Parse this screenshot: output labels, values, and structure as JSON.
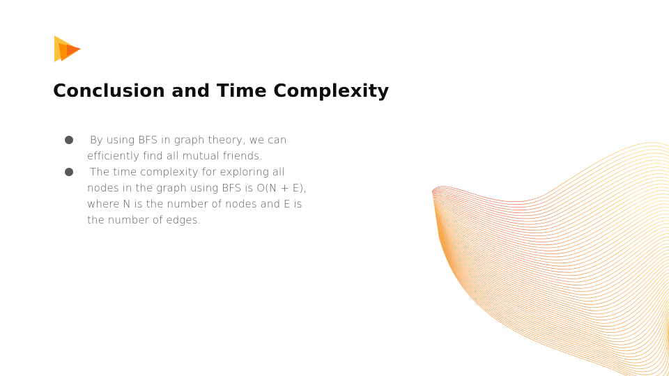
{
  "slide": {
    "title": "Conclusion and Time Complexity",
    "bullets": [
      {
        "text": "By using BFS in graph theory, we can efficiently find all mutual friends."
      },
      {
        "text": "The time complexity for exploring all nodes in the graph using BFS is O(N + E), where N is the number of nodes and E is the number of edges."
      }
    ]
  },
  "logo": {
    "icon": "play-triangle-logo-icon",
    "colors": [
      "#F9C23C",
      "#FF8A00",
      "#F36B16"
    ]
  },
  "decoration": {
    "icon": "line-wave-decoration",
    "gradient": [
      "#E8433F",
      "#F28C2A",
      "#F9B233",
      "#FFD36B"
    ]
  }
}
